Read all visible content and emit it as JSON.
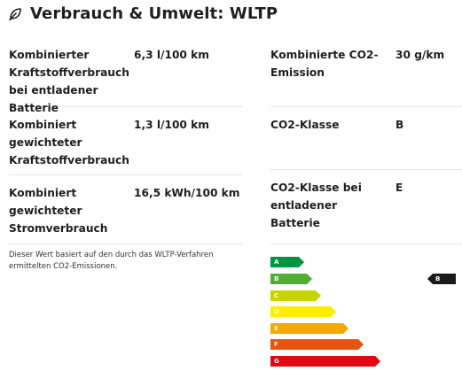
{
  "header": {
    "title": "Verbrauch & Umwelt: WLTP",
    "icon": "leaf-icon"
  },
  "left_specs": [
    {
      "label": "Kombinierter Kraftstoffverbrauch bei entladener Batterie",
      "value": "6,3 l/100 km"
    },
    {
      "label": "Kombiniert gewichteter Kraftstoffverbrauch",
      "value": "1,3 l/100 km"
    },
    {
      "label": "Kombiniert gewichteter Stromverbrauch",
      "value": "16,5 kWh/100 km"
    }
  ],
  "right_specs": [
    {
      "label": "Kombinierte CO2-Emission",
      "value": "30 g/km"
    },
    {
      "label": "CO2-Klasse",
      "value": "B"
    },
    {
      "label": "CO2-Klasse bei entladener Batterie",
      "value": "E"
    }
  ],
  "note": "Dieser Wert basiert auf den durch das WLTP-Verfahren ermittelten CO2-Emissionen.",
  "energy_label": {
    "classes": [
      {
        "letter": "A",
        "color": "#009640"
      },
      {
        "letter": "B",
        "color": "#52ae32"
      },
      {
        "letter": "C",
        "color": "#c8d400"
      },
      {
        "letter": "D",
        "color": "#ffed00"
      },
      {
        "letter": "E",
        "color": "#f5a800"
      },
      {
        "letter": "F",
        "color": "#e8530e"
      },
      {
        "letter": "G",
        "color": "#e30613"
      }
    ],
    "current_class": "B",
    "indicator_color": "#1a1a1a"
  }
}
